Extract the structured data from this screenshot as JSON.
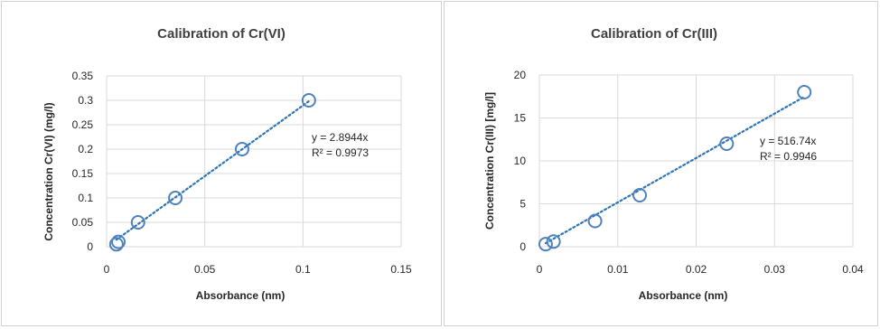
{
  "chart_data": [
    {
      "type": "scatter",
      "title": "Calibration of Cr(VI)",
      "xlabel": "Absorbance (nm)",
      "ylabel": "Concentration Cr(VI)  (mg/l)",
      "xlim": [
        0,
        0.15
      ],
      "ylim": [
        0,
        0.35
      ],
      "xticks": [
        "0",
        "0.05",
        "0.1",
        "0.15"
      ],
      "yticks": [
        "0",
        "0.05",
        "0.1",
        "0.15",
        "0.2",
        "0.25",
        "0.3",
        "0.35"
      ],
      "grid": true,
      "series": [
        {
          "x": [
            0.005,
            0.006,
            0.016,
            0.035,
            0.069,
            0.103
          ],
          "y": [
            0.005,
            0.01,
            0.05,
            0.1,
            0.2,
            0.3
          ]
        }
      ],
      "trendline": {
        "type": "linear",
        "slope": 2.8944,
        "intercept": 0,
        "style": "dotted"
      },
      "annotation": {
        "equation": "y = 2.8944x",
        "r2": "R² = 0.9973"
      },
      "colors": {
        "marker": "#4f81bd",
        "trendline": "#2e75b6",
        "grid": "#d9d9d9"
      }
    },
    {
      "type": "scatter",
      "title": "Calibration of Cr(III)",
      "xlabel": "Absorbance (nm)",
      "ylabel": "Concentration Cr(III) [mg/l]",
      "xlim": [
        0,
        0.04
      ],
      "ylim": [
        0,
        20
      ],
      "xticks": [
        "0",
        "0.01",
        "0.02",
        "0.03",
        "0.04"
      ],
      "yticks": [
        "0",
        "5",
        "10",
        "15",
        "20"
      ],
      "grid": true,
      "series": [
        {
          "x": [
            0.0008,
            0.0018,
            0.0071,
            0.0128,
            0.0239,
            0.0338
          ],
          "y": [
            0.3,
            0.6,
            3,
            6,
            12,
            18
          ]
        }
      ],
      "trendline": {
        "type": "linear",
        "slope": 516.74,
        "intercept": 0,
        "style": "dotted"
      },
      "annotation": {
        "equation": "y = 516.74x",
        "r2": "R² = 0.9946"
      },
      "colors": {
        "marker": "#4f81bd",
        "trendline": "#2e75b6",
        "grid": "#d9d9d9"
      }
    }
  ]
}
